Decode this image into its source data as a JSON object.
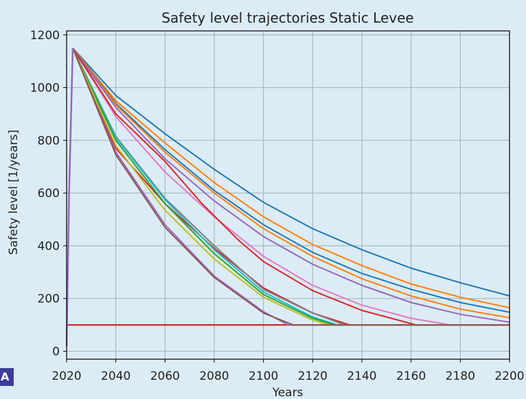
{
  "panel_label": "A",
  "chart_data": {
    "type": "line",
    "title": "Safety level trajectories Static Levee",
    "xlabel": "Years",
    "ylabel": "Safety level [1/years]",
    "xlim": [
      2020,
      2200
    ],
    "ylim": [
      -30,
      1215
    ],
    "xticks": [
      2020,
      2040,
      2060,
      2080,
      2100,
      2120,
      2140,
      2160,
      2180,
      2200
    ],
    "yticks": [
      0,
      200,
      400,
      600,
      800,
      1000,
      1200
    ],
    "grid": true,
    "threshold": {
      "y": 100,
      "color": "#d62728"
    },
    "rise": {
      "x": [
        2020,
        2021,
        2022.5
      ],
      "y": [
        20,
        600,
        1150
      ]
    },
    "series": [
      {
        "color": "#1f77b4",
        "x": [
          2022.5,
          2040,
          2060,
          2080,
          2100,
          2120,
          2140,
          2160,
          2180,
          2200
        ],
        "y": [
          1150,
          970,
          825,
          690,
          565,
          465,
          385,
          315,
          260,
          210
        ]
      },
      {
        "color": "#ff7f0e",
        "x": [
          2022.5,
          2040,
          2060,
          2080,
          2100,
          2120,
          2140,
          2160,
          2180,
          2200
        ],
        "y": [
          1150,
          950,
          790,
          640,
          510,
          405,
          325,
          255,
          205,
          165
        ]
      },
      {
        "color": "#1f77b4",
        "x": [
          2022.5,
          2040,
          2060,
          2080,
          2100,
          2120,
          2140,
          2160,
          2180,
          2200
        ],
        "y": [
          1150,
          940,
          765,
          610,
          480,
          375,
          295,
          235,
          185,
          148
        ]
      },
      {
        "color": "#ff7f0e",
        "x": [
          2022.5,
          2040,
          2060,
          2080,
          2100,
          2120,
          2140,
          2160,
          2180,
          2200
        ],
        "y": [
          1150,
          935,
          755,
          600,
          465,
          360,
          275,
          210,
          160,
          127
        ]
      },
      {
        "color": "#9467bd",
        "x": [
          2022.5,
          2040,
          2060,
          2080,
          2100,
          2120,
          2140,
          2160,
          2180,
          2200
        ],
        "y": [
          1150,
          925,
          730,
          570,
          435,
          330,
          250,
          185,
          140,
          110
        ]
      },
      {
        "color": "#e377c2",
        "x": [
          2022.5,
          2040,
          2060,
          2080,
          2100,
          2120,
          2140,
          2160,
          2176,
          2200
        ],
        "y": [
          1150,
          890,
          680,
          510,
          360,
          250,
          175,
          125,
          100,
          100
        ]
      },
      {
        "color": "#d62728",
        "x": [
          2022.5,
          2040,
          2060,
          2075,
          2090,
          2100,
          2120,
          2140,
          2162,
          2200
        ],
        "y": [
          1150,
          900,
          720,
          560,
          420,
          340,
          230,
          155,
          100,
          100
        ]
      },
      {
        "color": "#d62728",
        "x": [
          2022.5,
          2040,
          2060,
          2080,
          2100,
          2120,
          2135,
          2200
        ],
        "y": [
          1150,
          770,
          560,
          390,
          240,
          145,
          100,
          100
        ]
      },
      {
        "color": "#7f7f7f",
        "x": [
          2022.5,
          2040,
          2060,
          2080,
          2100,
          2120,
          2133,
          2200
        ],
        "y": [
          1150,
          815,
          580,
          400,
          235,
          145,
          100,
          100
        ]
      },
      {
        "color": "#17becf",
        "x": [
          2022.5,
          2040,
          2060,
          2080,
          2100,
          2120,
          2130,
          2200
        ],
        "y": [
          1150,
          810,
          575,
          385,
          225,
          130,
          100,
          100
        ]
      },
      {
        "color": "#2ca02c",
        "x": [
          2022.5,
          2040,
          2060,
          2080,
          2100,
          2120,
          2129,
          2200
        ],
        "y": [
          1150,
          800,
          560,
          370,
          215,
          125,
          100,
          100
        ]
      },
      {
        "color": "#bcbd22",
        "x": [
          2022.5,
          2040,
          2060,
          2080,
          2100,
          2120,
          2127,
          2200
        ],
        "y": [
          1150,
          780,
          535,
          350,
          205,
          118,
          100,
          100
        ]
      },
      {
        "color": "#9467bd",
        "x": [
          2022.5,
          2040,
          2060,
          2080,
          2100,
          2110,
          2200
        ],
        "y": [
          1150,
          755,
          480,
          285,
          150,
          100,
          100
        ]
      },
      {
        "color": "#8c564b",
        "x": [
          2022.5,
          2040,
          2060,
          2080,
          2100,
          2112,
          2200
        ],
        "y": [
          1150,
          745,
          470,
          280,
          145,
          100,
          100
        ]
      }
    ]
  }
}
